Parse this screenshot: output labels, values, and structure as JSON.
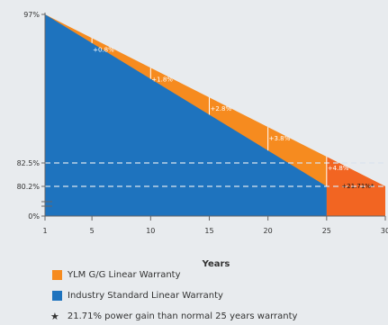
{
  "chart_data": {
    "type": "area",
    "xlabel": "Years",
    "x_ticks": [
      1,
      5,
      10,
      15,
      20,
      25,
      30
    ],
    "xlim": [
      1,
      30
    ],
    "y_ticks": [
      {
        "value": 97,
        "label": "97%"
      },
      {
        "value": 82.5,
        "label": "82.5%"
      },
      {
        "value": 80.2,
        "label": "80.2%"
      },
      {
        "value": 0,
        "label": "0%"
      }
    ],
    "reference_lines": [
      82.5,
      80.2
    ],
    "axis_break": true,
    "series": [
      {
        "name": "YLM G/G Linear Warranty",
        "color": "#f68b1f",
        "points": [
          [
            1,
            97
          ],
          [
            30,
            80.2
          ]
        ],
        "gain_labels": [
          {
            "x": 5,
            "label": "+0.8%"
          },
          {
            "x": 10,
            "label": "+1.8%"
          },
          {
            "x": 15,
            "label": "+2.8%"
          },
          {
            "x": 20,
            "label": "+3.8%"
          },
          {
            "x": 25,
            "label": "+4.8%"
          }
        ]
      },
      {
        "name": "Industry Standard Linear Warranty",
        "color": "#1e73be",
        "points": [
          [
            1,
            97
          ],
          [
            25,
            80.2
          ]
        ]
      }
    ],
    "final_block": {
      "from_x": 25,
      "to_x": 30,
      "color": "#f26522",
      "label": "+21.71%*"
    }
  },
  "legend": [
    {
      "label": "YLM G/G Linear Warranty",
      "color": "#f68b1f"
    },
    {
      "label": "Industry Standard Linear Warranty",
      "color": "#1e73be"
    }
  ],
  "footnote": {
    "symbol": "★",
    "text": "21.71% power gain than normal 25 years warranty"
  }
}
